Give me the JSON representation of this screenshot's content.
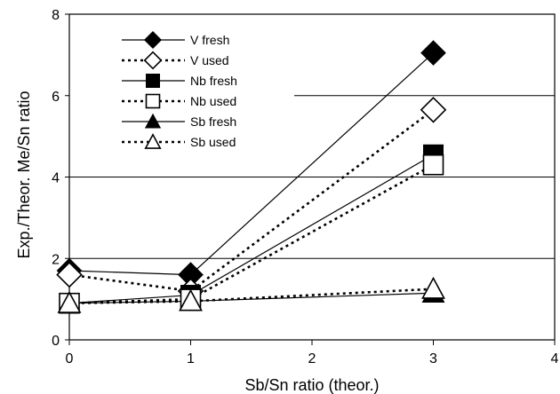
{
  "chart_data": {
    "type": "line",
    "xlabel": "Sb/Sn ratio (theor.)",
    "ylabel": "Exp./Theor. Me/Sn ratio",
    "xlim": [
      0,
      4
    ],
    "ylim": [
      0,
      8
    ],
    "xticks": [
      "0",
      "1",
      "2",
      "3",
      "4"
    ],
    "yticks": [
      "0",
      "2",
      "4",
      "6",
      "8"
    ],
    "grid": "horizontal",
    "legend_position": "top-left",
    "series": [
      {
        "name": "V fresh",
        "marker": "diamond",
        "filled": true,
        "dash": "solid",
        "x": [
          0,
          1,
          3
        ],
        "y": [
          1.7,
          1.6,
          7.05
        ]
      },
      {
        "name": "V used",
        "marker": "diamond",
        "filled": false,
        "dash": "dotted",
        "x": [
          0,
          1,
          3
        ],
        "y": [
          1.6,
          1.2,
          5.65
        ]
      },
      {
        "name": "Nb fresh",
        "marker": "square",
        "filled": true,
        "dash": "solid",
        "x": [
          0,
          1,
          3
        ],
        "y": [
          0.9,
          1.1,
          4.55
        ]
      },
      {
        "name": "Nb used",
        "marker": "square",
        "filled": false,
        "dash": "dotted",
        "x": [
          0,
          1,
          3
        ],
        "y": [
          0.9,
          1.0,
          4.3
        ]
      },
      {
        "name": "Sb fresh",
        "marker": "triangle",
        "filled": true,
        "dash": "solid",
        "x": [
          0,
          1,
          3
        ],
        "y": [
          0.9,
          0.95,
          1.15
        ]
      },
      {
        "name": "Sb used",
        "marker": "triangle",
        "filled": false,
        "dash": "dotted",
        "x": [
          0,
          1,
          3
        ],
        "y": [
          0.9,
          0.95,
          1.25
        ]
      }
    ]
  }
}
